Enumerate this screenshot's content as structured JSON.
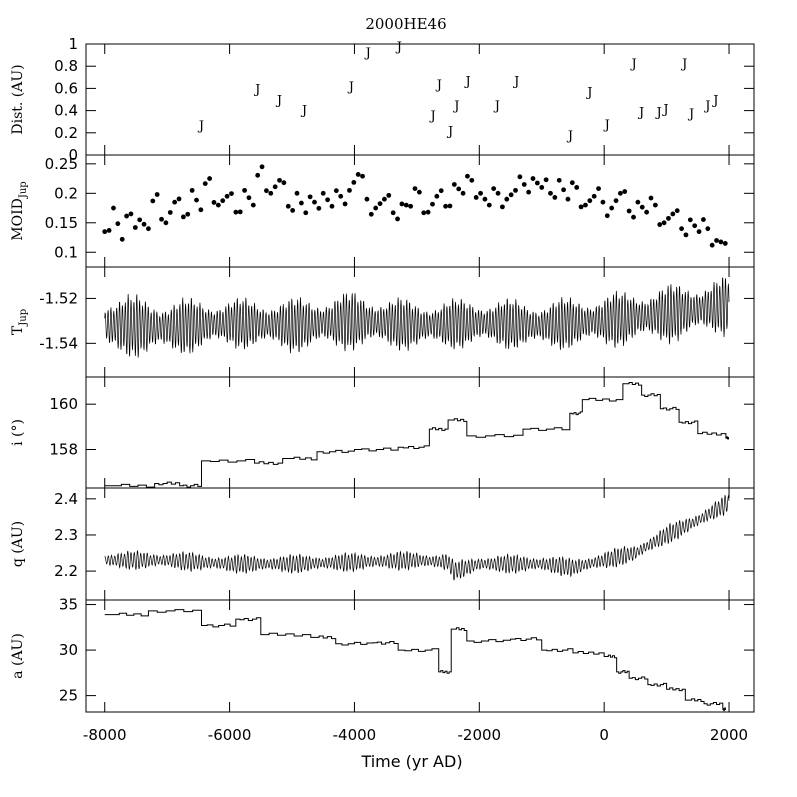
{
  "chart_data": {
    "type": "line",
    "title": "2000HE46",
    "xlabel": "Time (yr AD)",
    "xlim": [
      -8300,
      2400
    ],
    "x_ticks": [
      -8000,
      -6000,
      -4000,
      -2000,
      0,
      2000
    ],
    "x_tick_labels": [
      "-8000",
      "-6000",
      "-4000",
      "-2000",
      "0",
      "2000"
    ],
    "panels": [
      {
        "id": "dist",
        "ylabel": "Dist. (AU)",
        "plot_type": "marker",
        "marker_text": "J",
        "ylim": [
          0,
          1.0
        ],
        "y_ticks": [
          0,
          0.2,
          0.4,
          0.6,
          0.8,
          1
        ],
        "y_tick_labels": [
          "0",
          "0.2",
          "0.4",
          "0.6",
          "0.8",
          "1"
        ],
        "series": [
          {
            "x": [
              -6450,
              -5550,
              -5200,
              -4800,
              -4050,
              -3780,
              -3280,
              -2740,
              -2640,
              -2460,
              -2360,
              -2180,
              -1710,
              -1400,
              -540,
              -230,
              50,
              480,
              600,
              880,
              990,
              1290,
              1400,
              1660,
              1790
            ],
            "y": [
              0.27,
              0.6,
              0.5,
              0.41,
              0.62,
              0.93,
              0.98,
              0.36,
              0.64,
              0.22,
              0.45,
              0.67,
              0.45,
              0.67,
              0.18,
              0.57,
              0.28,
              0.83,
              0.39,
              0.39,
              0.42,
              0.83,
              0.38,
              0.45,
              0.5
            ]
          }
        ]
      },
      {
        "id": "moid",
        "ylabel": "MOID",
        "ylabel_sub": "Jup",
        "plot_type": "scatter",
        "ylim": [
          0.075,
          0.265
        ],
        "y_ticks": [
          0.1,
          0.15,
          0.2,
          0.25
        ],
        "y_tick_labels": [
          "0.1",
          "0.15",
          "0.2",
          "0.25"
        ],
        "series": [
          {
            "x": [
              -8000,
              -7860,
              -7720,
              -7580,
              -7440,
              -7300,
              -7160,
              -7020,
              -6880,
              -6740,
              -6600,
              -6460,
              -6320,
              -6180,
              -6040,
              -5900,
              -5760,
              -5620,
              -5480,
              -5340,
              -5200,
              -5060,
              -4920,
              -4780,
              -4640,
              -4500,
              -4360,
              -4220,
              -4080,
              -3940,
              -3800,
              -3660,
              -3520,
              -3380,
              -3240,
              -3100,
              -2960,
              -2820,
              -2680,
              -2540,
              -2400,
              -2260,
              -2120,
              -1980,
              -1840,
              -1700,
              -1560,
              -1420,
              -1280,
              -1140,
              -1000,
              -860,
              -720,
              -580,
              -440,
              -300,
              -160,
              -20,
              120,
              260,
              400,
              540,
              680,
              820,
              960,
              1100,
              1240,
              1380,
              1520,
              1660,
              1800,
              1940
            ],
            "y": [
              0.135,
              0.175,
              0.122,
              0.165,
              0.155,
              0.14,
              0.198,
              0.15,
              0.185,
              0.16,
              0.205,
              0.172,
              0.225,
              0.18,
              0.195,
              0.168,
              0.205,
              0.18,
              0.245,
              0.2,
              0.222,
              0.178,
              0.2,
              0.167,
              0.185,
              0.2,
              0.178,
              0.195,
              0.205,
              0.232,
              0.19,
              0.175,
              0.19,
              0.167,
              0.182,
              0.178,
              0.202,
              0.168,
              0.195,
              0.178,
              0.215,
              0.2,
              0.222,
              0.2,
              0.18,
              0.2,
              0.19,
              0.205,
              0.215,
              0.225,
              0.21,
              0.2,
              0.222,
              0.19,
              0.21,
              0.18,
              0.195,
              0.185,
              0.175,
              0.2,
              0.17,
              0.185,
              0.168,
              0.18,
              0.15,
              0.165,
              0.14,
              0.155,
              0.135,
              0.14,
              0.12,
              0.115
            ]
          }
        ]
      },
      {
        "id": "tjup",
        "ylabel": "T",
        "ylabel_sub": "Jup",
        "plot_type": "line",
        "ylim": [
          -1.555,
          -1.506
        ],
        "y_ticks": [
          -1.54,
          -1.52
        ],
        "y_tick_labels": [
          "-1.54",
          "-1.52"
        ],
        "series": [
          {
            "x": [
              -8000,
              -7000,
              -6000,
              -5000,
              -4000,
              -3000,
              -2000,
              -1000,
              0,
              1000,
              2000
            ],
            "y": [
              -1.532,
              -1.533,
              -1.531,
              -1.532,
              -1.53,
              -1.532,
              -1.531,
              -1.532,
              -1.53,
              -1.527,
              -1.523
            ],
            "osc_amplitude": [
              0.016,
              0.014,
              0.012,
              0.013,
              0.014,
              0.012,
              0.012,
              0.012,
              0.013,
              0.014,
              0.014
            ],
            "osc_period": 46
          }
        ]
      },
      {
        "id": "inc",
        "ylabel": "i (°)",
        "plot_type": "step",
        "ylim": [
          156.3,
          161.2
        ],
        "y_ticks": [
          158,
          160
        ],
        "y_tick_labels": [
          "158",
          "160"
        ],
        "series": [
          {
            "x": [
              -8000,
              -7200,
              -6800,
              -6450,
              -5600,
              -5150,
              -4600,
              -4000,
              -3300,
              -2800,
              -2500,
              -2200,
              -1300,
              -550,
              -350,
              300,
              600,
              900,
              1200,
              1500,
              1950
            ],
            "y": [
              156.4,
              156.5,
              156.4,
              157.5,
              157.4,
              157.6,
              157.9,
              158.0,
              158.1,
              158.9,
              159.3,
              158.6,
              158.9,
              159.6,
              160.2,
              160.9,
              160.4,
              159.8,
              159.2,
              158.7,
              158.5
            ]
          }
        ]
      },
      {
        "id": "q",
        "ylabel": "q (AU)",
        "plot_type": "line",
        "ylim": [
          2.12,
          2.43
        ],
        "y_ticks": [
          2.2,
          2.3,
          2.4
        ],
        "y_tick_labels": [
          "2.2",
          "2.3",
          "2.4"
        ],
        "series": [
          {
            "x": [
              -8000,
              -7000,
              -6000,
              -5000,
              -4000,
              -3000,
              -2500,
              -2400,
              -2000,
              -1000,
              -500,
              0,
              500,
              1000,
              1500,
              2000
            ],
            "y": [
              2.23,
              2.23,
              2.22,
              2.22,
              2.225,
              2.23,
              2.225,
              2.2,
              2.22,
              2.22,
              2.21,
              2.23,
              2.25,
              2.3,
              2.34,
              2.39
            ],
            "osc_amplitude": 0.028,
            "osc_period": 52
          }
        ]
      },
      {
        "id": "a",
        "ylabel": "a (AU)",
        "plot_type": "step",
        "ylim": [
          23.2,
          35.5
        ],
        "y_ticks": [
          25,
          30,
          35
        ],
        "y_tick_labels": [
          "25",
          "30",
          "35"
        ],
        "series": [
          {
            "x": [
              -8000,
              -7300,
              -6450,
              -5900,
              -5500,
              -4700,
              -4300,
              -3700,
              -3300,
              -2650,
              -2450,
              -2200,
              -1500,
              -1000,
              -500,
              0,
              200,
              400,
              700,
              1000,
              1300,
              1600,
              1900
            ],
            "y": [
              33.9,
              34.3,
              32.7,
              33.4,
              31.7,
              31.4,
              30.7,
              30.8,
              30.0,
              27.6,
              32.3,
              31.0,
              31.2,
              30.0,
              29.7,
              29.3,
              27.6,
              26.9,
              26.2,
              25.7,
              24.5,
              24.1,
              23.5
            ]
          }
        ]
      }
    ]
  }
}
